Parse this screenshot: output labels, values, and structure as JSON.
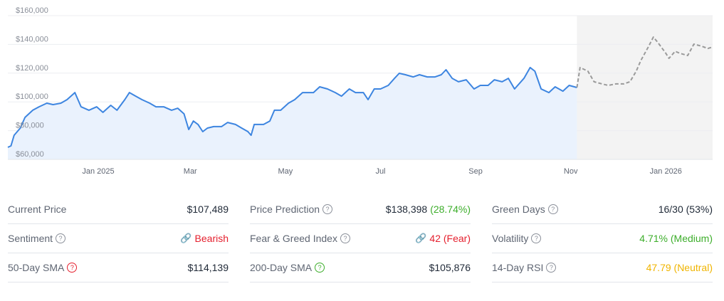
{
  "chart_data": {
    "type": "line",
    "title": "",
    "xlabel": "",
    "ylabel": "",
    "x_unit": "days",
    "xlim": [
      0,
      452
    ],
    "ylim": [
      60000,
      160000
    ],
    "grid": true,
    "y_ticks": [
      {
        "value": 60000,
        "label": "$60,000"
      },
      {
        "value": 80000,
        "label": "$80,000"
      },
      {
        "value": 100000,
        "label": "$100,000"
      },
      {
        "value": 120000,
        "label": "$120,000"
      },
      {
        "value": 140000,
        "label": "$140,000"
      },
      {
        "value": 160000,
        "label": "$160,000"
      }
    ],
    "x_ticks": [
      {
        "value": 58,
        "label": "Jan 2025"
      },
      {
        "value": 117,
        "label": "Mar"
      },
      {
        "value": 178,
        "label": "May"
      },
      {
        "value": 239,
        "label": "Jul"
      },
      {
        "value": 300,
        "label": "Sep"
      },
      {
        "value": 361,
        "label": "Nov"
      },
      {
        "value": 422,
        "label": "Jan 2026"
      }
    ],
    "series": [
      {
        "name": "Price",
        "style": "solid",
        "color": "#3d85e0",
        "points": [
          [
            0,
            68400
          ],
          [
            2,
            69400
          ],
          [
            4,
            76800
          ],
          [
            8,
            81800
          ],
          [
            11,
            89200
          ],
          [
            16,
            94200
          ],
          [
            20,
            96600
          ],
          [
            25,
            99100
          ],
          [
            29,
            98100
          ],
          [
            34,
            99100
          ],
          [
            38,
            101600
          ],
          [
            43,
            106500
          ],
          [
            47,
            96600
          ],
          [
            52,
            94200
          ],
          [
            57,
            96600
          ],
          [
            61,
            92700
          ],
          [
            66,
            97600
          ],
          [
            70,
            94200
          ],
          [
            75,
            101600
          ],
          [
            78,
            106500
          ],
          [
            82,
            104000
          ],
          [
            86,
            101600
          ],
          [
            91,
            99100
          ],
          [
            95,
            96600
          ],
          [
            100,
            96600
          ],
          [
            105,
            94200
          ],
          [
            109,
            95600
          ],
          [
            113,
            91700
          ],
          [
            116,
            80800
          ],
          [
            119,
            86700
          ],
          [
            122,
            84300
          ],
          [
            125,
            79300
          ],
          [
            128,
            81800
          ],
          [
            132,
            82800
          ],
          [
            137,
            82800
          ],
          [
            141,
            85700
          ],
          [
            146,
            84300
          ],
          [
            150,
            81800
          ],
          [
            154,
            79300
          ],
          [
            156,
            76800
          ],
          [
            158,
            84300
          ],
          [
            164,
            84300
          ],
          [
            168,
            86700
          ],
          [
            171,
            94200
          ],
          [
            175,
            94200
          ],
          [
            180,
            99100
          ],
          [
            184,
            101600
          ],
          [
            189,
            106500
          ],
          [
            196,
            106500
          ],
          [
            200,
            110500
          ],
          [
            205,
            109000
          ],
          [
            210,
            106500
          ],
          [
            214,
            104000
          ],
          [
            219,
            109000
          ],
          [
            223,
            106500
          ],
          [
            228,
            106500
          ],
          [
            231,
            101600
          ],
          [
            235,
            109000
          ],
          [
            239,
            109000
          ],
          [
            244,
            111500
          ],
          [
            248,
            116400
          ],
          [
            251,
            119900
          ],
          [
            255,
            118900
          ],
          [
            260,
            117400
          ],
          [
            264,
            118900
          ],
          [
            269,
            117400
          ],
          [
            274,
            117400
          ],
          [
            278,
            118900
          ],
          [
            281,
            122400
          ],
          [
            285,
            116400
          ],
          [
            289,
            114000
          ],
          [
            294,
            115400
          ],
          [
            299,
            109000
          ],
          [
            303,
            111500
          ],
          [
            308,
            111500
          ],
          [
            312,
            115400
          ],
          [
            317,
            114000
          ],
          [
            321,
            116400
          ],
          [
            325,
            109000
          ],
          [
            331,
            116400
          ],
          [
            335,
            123900
          ],
          [
            338,
            121400
          ],
          [
            342,
            109000
          ],
          [
            347,
            106500
          ],
          [
            351,
            110500
          ],
          [
            356,
            107500
          ],
          [
            360,
            111500
          ],
          [
            365,
            110000
          ]
        ]
      },
      {
        "name": "Prediction",
        "style": "dashed",
        "color": "#9a9a9a",
        "points": [
          [
            365,
            110000
          ],
          [
            367,
            123900
          ],
          [
            372,
            121400
          ],
          [
            376,
            114000
          ],
          [
            381,
            112500
          ],
          [
            385,
            111500
          ],
          [
            390,
            112500
          ],
          [
            395,
            112500
          ],
          [
            399,
            114000
          ],
          [
            403,
            121400
          ],
          [
            406,
            128800
          ],
          [
            411,
            138700
          ],
          [
            414,
            145100
          ],
          [
            417,
            141200
          ],
          [
            422,
            133800
          ],
          [
            424,
            130300
          ],
          [
            428,
            135200
          ],
          [
            431,
            133800
          ],
          [
            436,
            132300
          ],
          [
            440,
            140200
          ],
          [
            445,
            138700
          ],
          [
            449,
            137200
          ],
          [
            452,
            138200
          ]
        ]
      }
    ]
  },
  "stats": {
    "col1": [
      {
        "label": "Current Price",
        "value": "$107,489"
      },
      {
        "label": "Sentiment",
        "value": "Bearish",
        "value_color": "#e5202e"
      },
      {
        "label": "50-Day SMA",
        "value": "$114,139",
        "help_color": "#e5202e"
      }
    ],
    "col2": [
      {
        "label": "Price Prediction",
        "value": "$138,398",
        "extra": "(28.74%)",
        "extra_color": "#3dae2b"
      },
      {
        "label": "Fear & Greed Index",
        "value": "42 (Fear)",
        "value_color": "#e5202e"
      },
      {
        "label": "200-Day SMA",
        "value": "$105,876",
        "help_color": "#3dae2b"
      }
    ],
    "col3": [
      {
        "label": "Green Days",
        "value": "16/30 (53%)"
      },
      {
        "label": "Volatility",
        "value": "4.71% (Medium)",
        "value_color": "#3dae2b"
      },
      {
        "label": "14-Day RSI",
        "value": "47.79 (Neutral)",
        "value_color": "#f0b400"
      }
    ],
    "help_icon": "?"
  }
}
